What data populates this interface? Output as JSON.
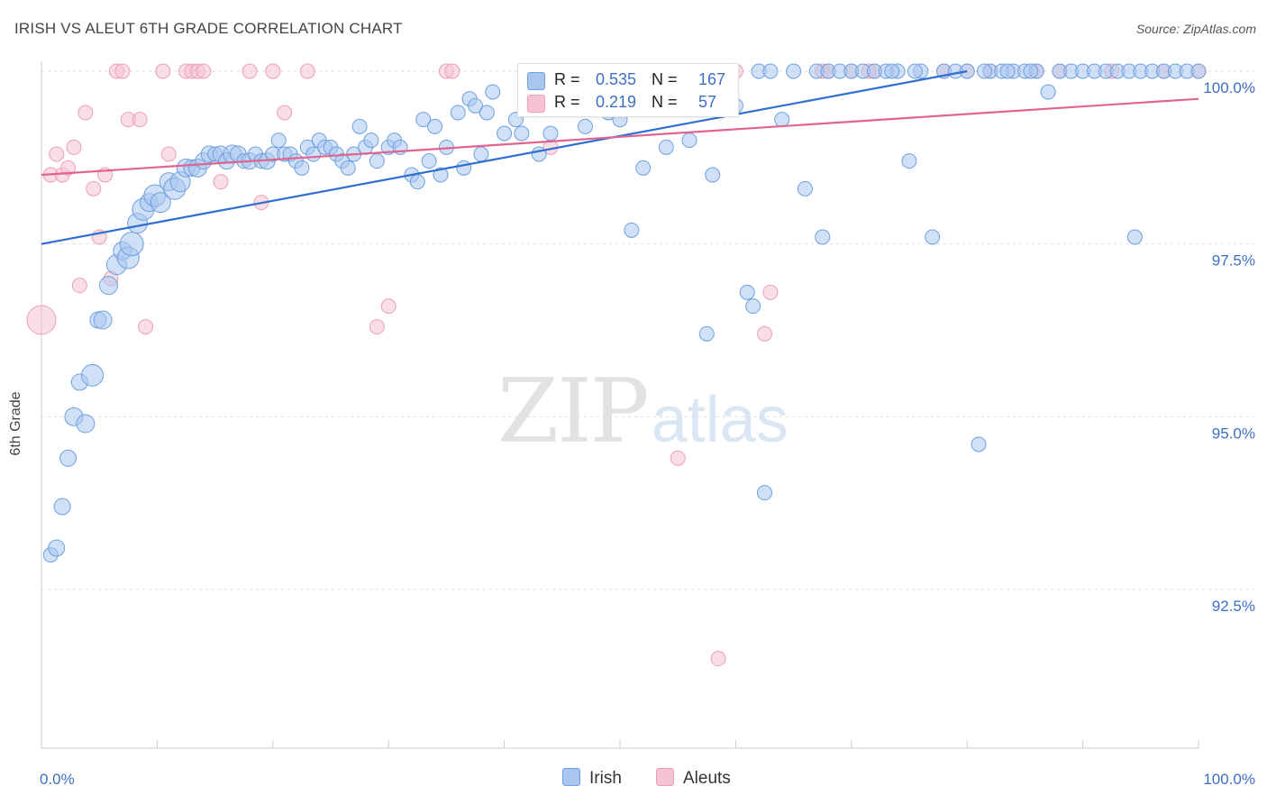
{
  "header": {
    "title": "IRISH VS ALEUT 6TH GRADE CORRELATION CHART",
    "source": "Source: ZipAtlas.com"
  },
  "watermark": {
    "zip": "ZIP",
    "atlas": "atlas"
  },
  "colors": {
    "irish_fill": "#a9c7ee",
    "irish_stroke": "#6fa0de",
    "irish_line": "#2f6fd0",
    "aleut_fill": "#f6c3d2",
    "aleut_stroke": "#ec9fb6",
    "aleut_line": "#e0648f",
    "tick_text": "#3d6fc4",
    "grid": "#dddddd"
  },
  "legend_top": {
    "rows": [
      {
        "r_label": "R =",
        "r_value": "0.535",
        "n_label": "N =",
        "n_value": "167"
      },
      {
        "r_label": "R =",
        "r_value": "0.219",
        "n_label": "N =",
        "n_value": "57"
      }
    ]
  },
  "legend_bottom": {
    "items": [
      "Irish",
      "Aleuts"
    ]
  },
  "chart_data": {
    "type": "scatter",
    "title": "IRISH VS ALEUT 6TH GRADE CORRELATION CHART",
    "xlabel": "",
    "ylabel": "6th Grade",
    "xlim": [
      0,
      100
    ],
    "ylim": [
      90.2,
      100.6
    ],
    "x_tick_labels": [
      "0.0%",
      "100.0%"
    ],
    "y_ticks": [
      92.5,
      95.0,
      97.5,
      100.0
    ],
    "y_tick_labels": [
      "92.5%",
      "95.0%",
      "97.5%",
      "100.0%"
    ],
    "grid": "horizontal dashed",
    "legend_placement": "bottom-center",
    "series": [
      {
        "name": "Irish",
        "R": 0.535,
        "N": 167,
        "trend": {
          "x": [
            0,
            80
          ],
          "y": [
            97.5,
            100.0
          ]
        },
        "points": [
          [
            0.8,
            93.0,
            8
          ],
          [
            1.3,
            93.1,
            9
          ],
          [
            1.8,
            93.7,
            9
          ],
          [
            2.3,
            94.4,
            9
          ],
          [
            2.8,
            95.0,
            10
          ],
          [
            3.3,
            95.5,
            9
          ],
          [
            3.8,
            94.9,
            10
          ],
          [
            4.4,
            95.6,
            12
          ],
          [
            4.9,
            96.4,
            9
          ],
          [
            5.3,
            96.4,
            10
          ],
          [
            5.8,
            96.9,
            10
          ],
          [
            6.5,
            97.2,
            11
          ],
          [
            7.0,
            97.4,
            10
          ],
          [
            7.5,
            97.3,
            12
          ],
          [
            7.8,
            97.5,
            13
          ],
          [
            8.3,
            97.8,
            11
          ],
          [
            8.8,
            98.0,
            12
          ],
          [
            9.3,
            98.1,
            10
          ],
          [
            9.8,
            98.2,
            12
          ],
          [
            10.3,
            98.1,
            11
          ],
          [
            11.0,
            98.4,
            10
          ],
          [
            11.5,
            98.3,
            12
          ],
          [
            12.0,
            98.4,
            11
          ],
          [
            12.5,
            98.6,
            10
          ],
          [
            13.0,
            98.6,
            9
          ],
          [
            13.5,
            98.6,
            10
          ],
          [
            14.0,
            98.7,
            9
          ],
          [
            14.5,
            98.8,
            9
          ],
          [
            15.0,
            98.8,
            8
          ],
          [
            15.5,
            98.8,
            9
          ],
          [
            16.0,
            98.7,
            9
          ],
          [
            16.5,
            98.8,
            10
          ],
          [
            17.0,
            98.8,
            9
          ],
          [
            17.5,
            98.7,
            8
          ],
          [
            18.0,
            98.7,
            9
          ],
          [
            18.5,
            98.8,
            8
          ],
          [
            19.0,
            98.7,
            8
          ],
          [
            19.5,
            98.7,
            9
          ],
          [
            20.0,
            98.8,
            8
          ],
          [
            20.5,
            99.0,
            8
          ],
          [
            21.0,
            98.8,
            8
          ],
          [
            21.5,
            98.8,
            8
          ],
          [
            22.0,
            98.7,
            8
          ],
          [
            22.5,
            98.6,
            8
          ],
          [
            23.0,
            98.9,
            8
          ],
          [
            23.5,
            98.8,
            8
          ],
          [
            24.0,
            99.0,
            8
          ],
          [
            24.5,
            98.9,
            8
          ],
          [
            25.0,
            98.9,
            8
          ],
          [
            25.5,
            98.8,
            8
          ],
          [
            26.0,
            98.7,
            8
          ],
          [
            26.5,
            98.6,
            8
          ],
          [
            27.0,
            98.8,
            8
          ],
          [
            27.5,
            99.2,
            8
          ],
          [
            28.0,
            98.9,
            8
          ],
          [
            28.5,
            99.0,
            8
          ],
          [
            29.0,
            98.7,
            8
          ],
          [
            30.0,
            98.9,
            8
          ],
          [
            30.5,
            99.0,
            8
          ],
          [
            31.0,
            98.9,
            8
          ],
          [
            32.0,
            98.5,
            8
          ],
          [
            32.5,
            98.4,
            8
          ],
          [
            33.0,
            99.3,
            8
          ],
          [
            33.5,
            98.7,
            8
          ],
          [
            34.0,
            99.2,
            8
          ],
          [
            34.5,
            98.5,
            8
          ],
          [
            35.0,
            98.9,
            8
          ],
          [
            36.0,
            99.4,
            8
          ],
          [
            36.5,
            98.6,
            8
          ],
          [
            37.0,
            99.6,
            8
          ],
          [
            37.5,
            99.5,
            8
          ],
          [
            38.0,
            98.8,
            8
          ],
          [
            38.5,
            99.4,
            8
          ],
          [
            39.0,
            99.7,
            8
          ],
          [
            40.0,
            99.1,
            8
          ],
          [
            41.0,
            99.3,
            8
          ],
          [
            41.5,
            99.1,
            8
          ],
          [
            42.5,
            99.8,
            8
          ],
          [
            43.0,
            98.8,
            8
          ],
          [
            44.0,
            99.1,
            8
          ],
          [
            45.0,
            99.9,
            8
          ],
          [
            45.5,
            99.6,
            8
          ],
          [
            46.0,
            100.0,
            8
          ],
          [
            47.0,
            99.2,
            8
          ],
          [
            48.0,
            99.6,
            8
          ],
          [
            48.5,
            100.0,
            8
          ],
          [
            49.0,
            99.4,
            8
          ],
          [
            50.0,
            99.3,
            8
          ],
          [
            50.5,
            100.0,
            8
          ],
          [
            51.0,
            97.7,
            8
          ],
          [
            52.0,
            98.6,
            8
          ],
          [
            52.5,
            99.7,
            8
          ],
          [
            53.0,
            100.0,
            8
          ],
          [
            54.0,
            98.9,
            8
          ],
          [
            55.0,
            100.0,
            8
          ],
          [
            56.0,
            99.0,
            8
          ],
          [
            57.0,
            100.0,
            8
          ],
          [
            57.5,
            96.2,
            8
          ],
          [
            58.0,
            98.5,
            8
          ],
          [
            59.0,
            100.0,
            8
          ],
          [
            60.0,
            99.5,
            8
          ],
          [
            61.0,
            96.8,
            8
          ],
          [
            61.5,
            96.6,
            8
          ],
          [
            62.0,
            100.0,
            8
          ],
          [
            63.0,
            100.0,
            8
          ],
          [
            62.5,
            93.9,
            8
          ],
          [
            64.0,
            99.3,
            8
          ],
          [
            65.0,
            100.0,
            8
          ],
          [
            66.0,
            98.3,
            8
          ],
          [
            67.0,
            100.0,
            8
          ],
          [
            67.5,
            97.6,
            8
          ],
          [
            68.0,
            100.0,
            8
          ],
          [
            69.0,
            100.0,
            8
          ],
          [
            70.0,
            100.0,
            8
          ],
          [
            71.0,
            100.0,
            8
          ],
          [
            72.0,
            100.0,
            8
          ],
          [
            73.0,
            100.0,
            8
          ],
          [
            74.0,
            100.0,
            8
          ],
          [
            75.0,
            98.7,
            8
          ],
          [
            76.0,
            100.0,
            8
          ],
          [
            77.0,
            97.6,
            8
          ],
          [
            78.0,
            100.0,
            8
          ],
          [
            79.0,
            100.0,
            8
          ],
          [
            80.0,
            100.0,
            8
          ],
          [
            81.0,
            94.6,
            8
          ],
          [
            82.0,
            100.0,
            8
          ],
          [
            83.0,
            100.0,
            8
          ],
          [
            84.0,
            100.0,
            8
          ],
          [
            85.0,
            100.0,
            8
          ],
          [
            86.0,
            100.0,
            8
          ],
          [
            87.0,
            99.7,
            8
          ],
          [
            88.0,
            100.0,
            8
          ],
          [
            89.0,
            100.0,
            8
          ],
          [
            90.0,
            100.0,
            8
          ],
          [
            91.0,
            100.0,
            8
          ],
          [
            92.0,
            100.0,
            8
          ],
          [
            93.0,
            100.0,
            8
          ],
          [
            94.0,
            100.0,
            8
          ],
          [
            95.0,
            100.0,
            8
          ],
          [
            96.0,
            100.0,
            8
          ],
          [
            97.0,
            100.0,
            8
          ],
          [
            98.0,
            100.0,
            8
          ],
          [
            99.0,
            100.0,
            8
          ],
          [
            100.0,
            100.0,
            8
          ],
          [
            94.5,
            97.6,
            8
          ],
          [
            83.5,
            100.0,
            8
          ],
          [
            75.5,
            100.0,
            8
          ],
          [
            73.5,
            100.0,
            8
          ],
          [
            81.5,
            100.0,
            8
          ],
          [
            85.5,
            100.0,
            8
          ]
        ]
      },
      {
        "name": "Aleuts",
        "R": 0.219,
        "N": 57,
        "trend": {
          "x": [
            0,
            100
          ],
          "y": [
            98.5,
            99.6
          ]
        },
        "points": [
          [
            0.0,
            96.4,
            16
          ],
          [
            0.8,
            98.5,
            8
          ],
          [
            1.3,
            98.8,
            8
          ],
          [
            1.8,
            98.5,
            8
          ],
          [
            2.3,
            98.6,
            8
          ],
          [
            2.8,
            98.9,
            8
          ],
          [
            3.3,
            96.9,
            8
          ],
          [
            3.8,
            99.4,
            8
          ],
          [
            4.5,
            98.3,
            8
          ],
          [
            5.0,
            97.6,
            8
          ],
          [
            5.5,
            98.5,
            8
          ],
          [
            6.0,
            97.0,
            8
          ],
          [
            6.5,
            100.0,
            8
          ],
          [
            7.0,
            100.0,
            8
          ],
          [
            7.5,
            99.3,
            8
          ],
          [
            8.5,
            99.3,
            8
          ],
          [
            9.0,
            96.3,
            8
          ],
          [
            10.5,
            100.0,
            8
          ],
          [
            11.0,
            98.8,
            8
          ],
          [
            12.5,
            100.0,
            8
          ],
          [
            13.0,
            100.0,
            8
          ],
          [
            13.5,
            100.0,
            8
          ],
          [
            14.0,
            100.0,
            8
          ],
          [
            15.5,
            98.4,
            8
          ],
          [
            18.0,
            100.0,
            8
          ],
          [
            19.0,
            98.1,
            8
          ],
          [
            20.0,
            100.0,
            8
          ],
          [
            21.0,
            99.4,
            8
          ],
          [
            23.0,
            100.0,
            8
          ],
          [
            29.0,
            96.3,
            8
          ],
          [
            30.0,
            96.6,
            8
          ],
          [
            35.0,
            100.0,
            8
          ],
          [
            35.5,
            100.0,
            8
          ],
          [
            42.0,
            99.7,
            8
          ],
          [
            43.0,
            99.6,
            8
          ],
          [
            44.0,
            98.9,
            8
          ],
          [
            50.0,
            100.0,
            8
          ],
          [
            52.0,
            100.0,
            8
          ],
          [
            55.0,
            94.4,
            8
          ],
          [
            56.5,
            100.0,
            8
          ],
          [
            58.5,
            91.5,
            8
          ],
          [
            60.0,
            100.0,
            8
          ],
          [
            62.5,
            96.2,
            8
          ],
          [
            63.0,
            96.8,
            8
          ],
          [
            67.5,
            100.0,
            8
          ],
          [
            68.0,
            100.0,
            8
          ],
          [
            70.0,
            100.0,
            8
          ],
          [
            71.5,
            100.0,
            8
          ],
          [
            72.0,
            100.0,
            8
          ],
          [
            78.0,
            100.0,
            8
          ],
          [
            80.0,
            100.0,
            8
          ],
          [
            82.0,
            100.0,
            8
          ],
          [
            86.0,
            100.0,
            8
          ],
          [
            88.0,
            100.0,
            8
          ],
          [
            92.5,
            100.0,
            8
          ],
          [
            97.0,
            100.0,
            8
          ],
          [
            100.0,
            100.0,
            8
          ]
        ]
      }
    ]
  }
}
